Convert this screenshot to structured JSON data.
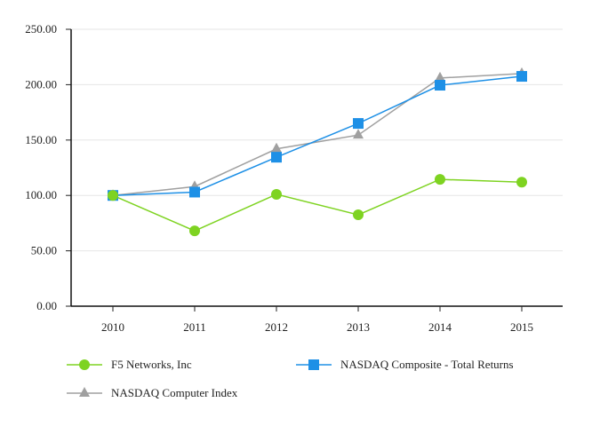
{
  "chart_data": {
    "type": "line",
    "title": "",
    "xlabel": "",
    "ylabel": "",
    "categories": [
      "2010",
      "2011",
      "2012",
      "2013",
      "2014",
      "2015"
    ],
    "ylim": [
      0,
      250
    ],
    "yticks": [
      "0.00",
      "50.00",
      "100.00",
      "150.00",
      "200.00",
      "250.00"
    ],
    "ytick_values": [
      0,
      50,
      100,
      150,
      200,
      250
    ],
    "grid": true,
    "legend_position": "bottom",
    "series": [
      {
        "name": "F5 Networks, Inc",
        "color": "#7ed321",
        "marker": "circle",
        "values": [
          100,
          68,
          101,
          82.5,
          114.5,
          112
        ]
      },
      {
        "name": "NASDAQ Composite - Total Returns",
        "color": "#1e90e6",
        "marker": "square",
        "values": [
          100,
          103,
          134.5,
          165,
          199.5,
          207.5
        ]
      },
      {
        "name": "NASDAQ Computer Index",
        "color": "#a0a0a0",
        "marker": "triangle",
        "values": [
          100,
          108,
          142,
          154.5,
          206,
          210
        ]
      }
    ]
  }
}
